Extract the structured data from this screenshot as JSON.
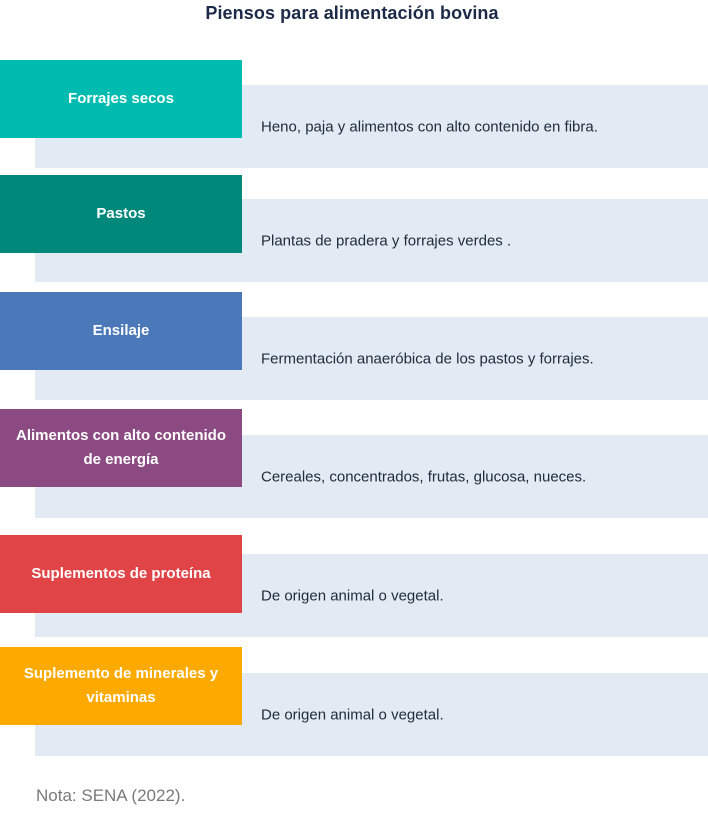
{
  "title": "Piensos para alimentación bovina",
  "items": [
    {
      "label": "Forrajes secos",
      "description": "Heno, paja y alimentos con alto contenido en fibra.",
      "color": "#00bcb0"
    },
    {
      "label": "Pastos",
      "description": "Plantas de pradera y forrajes verdes .",
      "color": "#00897b"
    },
    {
      "label": "Ensilaje",
      "description": "Fermentación anaeróbica de los pastos y forrajes.",
      "color": "#4b78b9"
    },
    {
      "label": "Alimentos con alto contenido de energía",
      "description": "Cereales, concentrados, frutas, glucosa, nueces.",
      "color": "#8c4a82"
    },
    {
      "label": "Suplementos de proteína",
      "description": "De origen animal o vegetal.",
      "color": "#e04446"
    },
    {
      "label": "Suplemento de minerales y vitaminas",
      "description": "De origen animal o vegetal.",
      "color": "#fdaa00"
    }
  ],
  "note": "Nota: SENA (2022)."
}
